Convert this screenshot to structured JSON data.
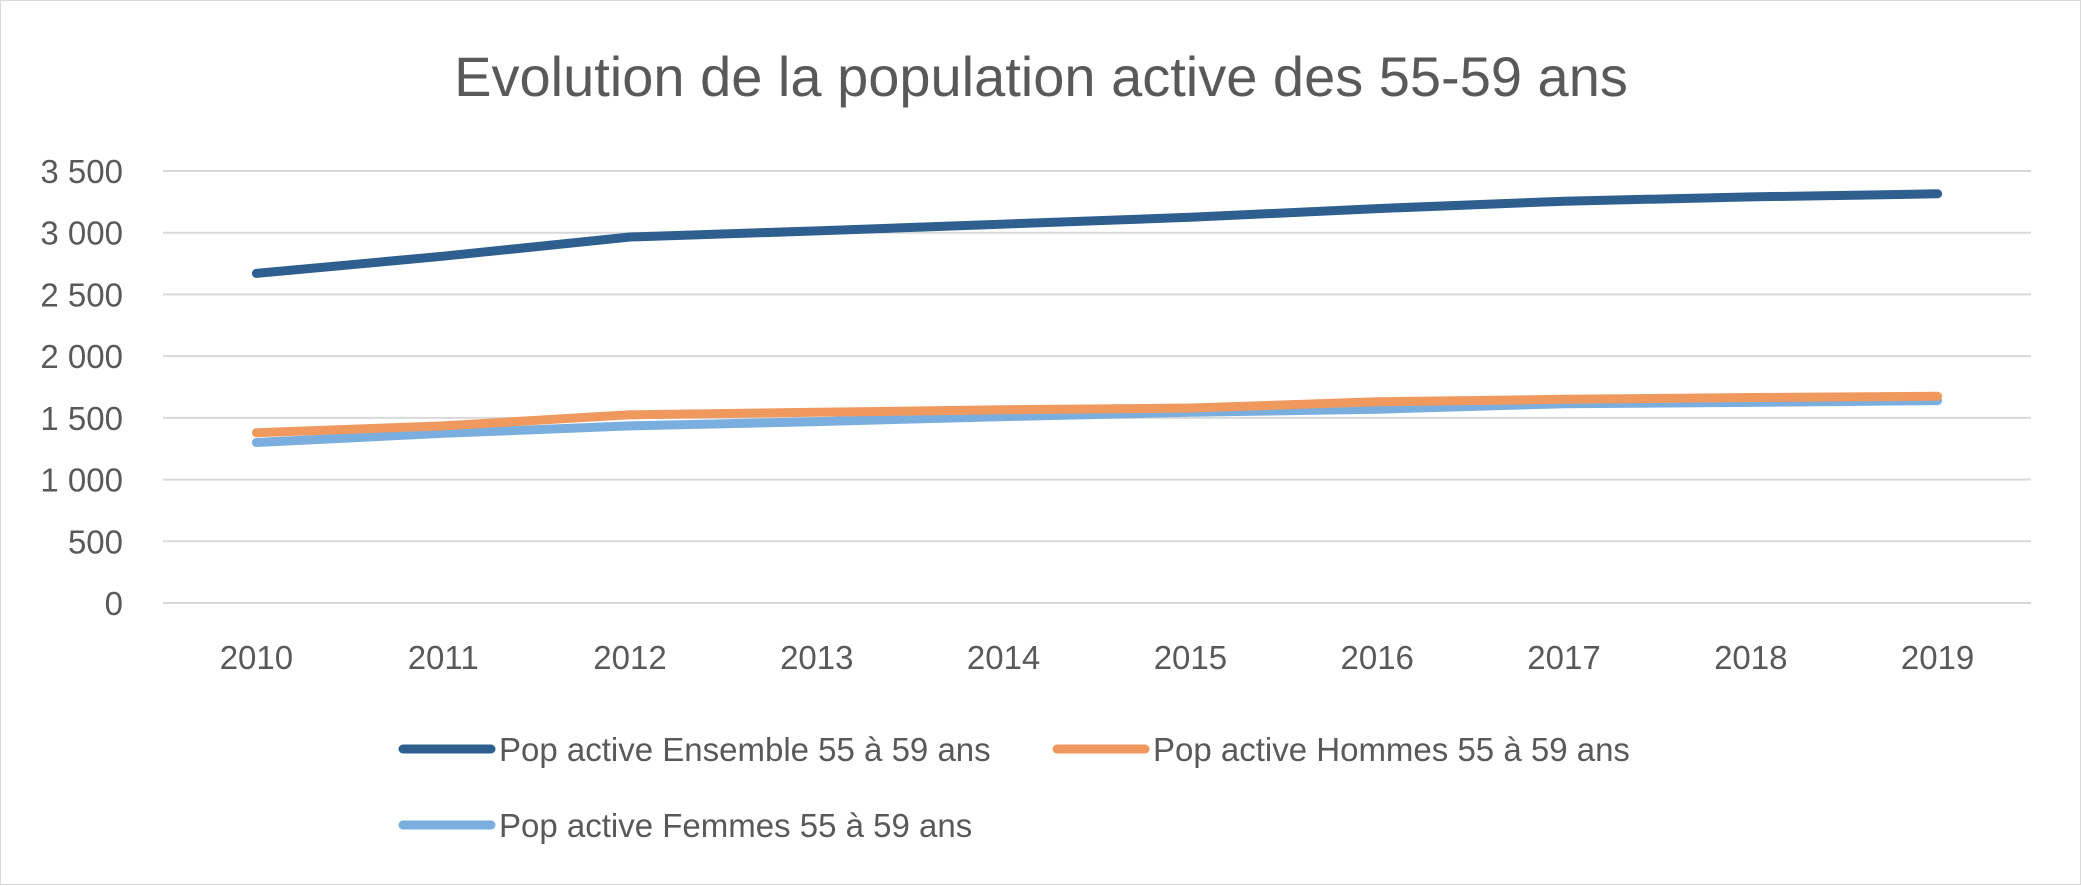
{
  "chart_data": {
    "type": "line",
    "title": "Evolution de la population active des 55-59 ans",
    "xlabel": "",
    "ylabel": "",
    "x": [
      "2010",
      "2011",
      "2012",
      "2013",
      "2014",
      "2015",
      "2016",
      "2017",
      "2018",
      "2019"
    ],
    "ylim": [
      0,
      3500
    ],
    "yticks": [
      0,
      500,
      1000,
      1500,
      2000,
      2500,
      3000,
      3500
    ],
    "ytick_labels": [
      "0",
      "500",
      "1 000",
      "1 500",
      "2 000",
      "2 500",
      "3 000",
      "3 500"
    ],
    "grid": true,
    "legend_position": "bottom",
    "series": [
      {
        "name": "Pop active Ensemble 55 à 59 ans",
        "color": "#2e5f8e",
        "values": [
          2670,
          2810,
          2965,
          3015,
          3070,
          3125,
          3195,
          3255,
          3290,
          3315
        ]
      },
      {
        "name": "Pop active Hommes 55 à 59 ans",
        "color": "#f0995e",
        "values": [
          1380,
          1435,
          1525,
          1545,
          1565,
          1580,
          1630,
          1650,
          1665,
          1675
        ]
      },
      {
        "name": "Pop active Femmes 55 à 59 ans",
        "color": "#7aaede",
        "values": [
          1300,
          1375,
          1435,
          1470,
          1510,
          1545,
          1570,
          1615,
          1625,
          1640
        ]
      }
    ]
  }
}
